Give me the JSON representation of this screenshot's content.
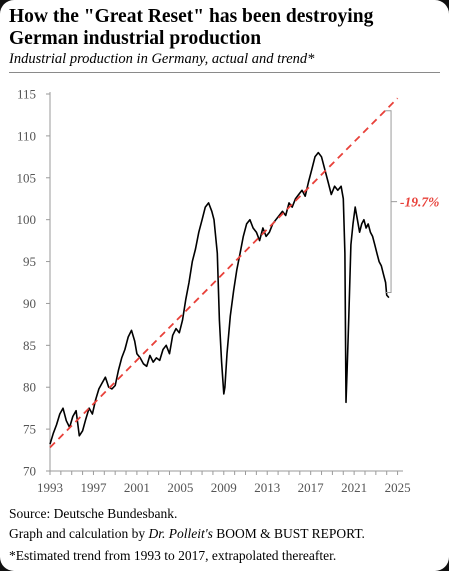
{
  "header": {
    "title_line1": "How the \"Great Reset\" has been destroying",
    "title_line2": "German industrial production",
    "subtitle": "Industrial production in Germany, actual and trend*"
  },
  "footer": {
    "source": "Source: Deutsche Bundesbank.",
    "credit_prefix": "Graph and calculation by ",
    "credit_author": "Dr. Polleit's",
    "credit_suffix": " BOOM & BUST REPORT.",
    "note": "*Estimated trend from 1993 to 2017, extrapolated thereafter."
  },
  "colors": {
    "actual": "#000000",
    "trend": "#e8413a",
    "bracket": "#9a9a9a",
    "annotation": "#e8413a",
    "axis": "#9a9a9a",
    "tick_text": "#555555"
  },
  "chart_data": {
    "type": "line",
    "title": "How the \"Great Reset\" has been destroying German industrial production",
    "subtitle": "Industrial production in Germany, actual and trend*",
    "xlabel": "",
    "ylabel": "",
    "xlim": [
      1993,
      2025.5
    ],
    "ylim": [
      70,
      115
    ],
    "x_ticks": [
      "1993",
      "1997",
      "2001",
      "2005",
      "2009",
      "2013",
      "2017",
      "2021",
      "2025"
    ],
    "y_ticks": [
      "70",
      "75",
      "80",
      "85",
      "90",
      "95",
      "100",
      "105",
      "110",
      "115"
    ],
    "grid": false,
    "legend": "none",
    "series": [
      {
        "style": "solid",
        "x": [
          1993.0,
          1993.3,
          1993.6,
          1993.9,
          1994.2,
          1994.5,
          1994.8,
          1995.1,
          1995.4,
          1995.7,
          1996.0,
          1996.3,
          1996.6,
          1996.9,
          1997.2,
          1997.5,
          1997.8,
          1998.1,
          1998.4,
          1998.7,
          1999.0,
          1999.3,
          1999.6,
          1999.9,
          2000.2,
          2000.5,
          2000.8,
          2001.0,
          2001.3,
          2001.6,
          2001.9,
          2002.2,
          2002.5,
          2002.8,
          2003.1,
          2003.4,
          2003.7,
          2004.0,
          2004.3,
          2004.6,
          2004.9,
          2005.2,
          2005.5,
          2005.8,
          2006.1,
          2006.4,
          2006.7,
          2007.0,
          2007.3,
          2007.6,
          2007.9,
          2008.1,
          2008.4,
          2008.6,
          2008.8,
          2009.0,
          2009.1,
          2009.3,
          2009.6,
          2009.9,
          2010.2,
          2010.5,
          2010.8,
          2011.1,
          2011.4,
          2011.7,
          2012.0,
          2012.3,
          2012.6,
          2012.9,
          2013.2,
          2013.5,
          2013.8,
          2014.1,
          2014.4,
          2014.7,
          2015.0,
          2015.3,
          2015.6,
          2015.9,
          2016.2,
          2016.5,
          2016.8,
          2017.1,
          2017.4,
          2017.7,
          2018.0,
          2018.3,
          2018.6,
          2018.9,
          2019.2,
          2019.5,
          2019.8,
          2020.0,
          2020.15,
          2020.25,
          2020.35,
          2020.5,
          2020.7,
          2020.9,
          2021.1,
          2021.3,
          2021.5,
          2021.7,
          2021.9,
          2022.1,
          2022.3,
          2022.5,
          2022.7,
          2022.9,
          2023.1,
          2023.3,
          2023.5,
          2023.7,
          2023.9,
          2024.0,
          2024.2
        ],
        "values": [
          73.2,
          74.5,
          75.5,
          76.8,
          77.5,
          76.0,
          75.2,
          76.5,
          77.2,
          74.2,
          74.8,
          76.2,
          77.5,
          76.8,
          78.5,
          79.8,
          80.5,
          81.2,
          80.0,
          79.8,
          80.2,
          82.0,
          83.5,
          84.5,
          86.0,
          86.8,
          85.5,
          84.0,
          83.5,
          82.8,
          82.5,
          83.8,
          83.0,
          83.5,
          83.2,
          84.5,
          85.0,
          84.0,
          86.2,
          87.0,
          86.5,
          88.0,
          90.5,
          92.5,
          95.0,
          96.5,
          98.5,
          100.0,
          101.5,
          102.0,
          101.0,
          100.0,
          96.0,
          88.0,
          83.0,
          79.2,
          80.0,
          84.0,
          88.5,
          91.5,
          94.0,
          96.0,
          98.0,
          99.5,
          100.0,
          99.0,
          98.5,
          97.5,
          99.0,
          98.0,
          98.5,
          99.5,
          100.0,
          100.5,
          101.0,
          100.5,
          102.0,
          101.5,
          102.5,
          103.0,
          103.5,
          102.8,
          104.5,
          106.0,
          107.5,
          108.0,
          107.5,
          106.0,
          104.5,
          103.0,
          104.0,
          103.5,
          104.0,
          102.5,
          96.0,
          78.2,
          82.0,
          88.0,
          97.0,
          99.5,
          101.5,
          100.0,
          98.5,
          99.5,
          100.0,
          99.0,
          99.5,
          98.5,
          98.0,
          97.0,
          96.0,
          95.0,
          94.5,
          93.5,
          92.5,
          91.0,
          90.7
        ]
      },
      {
        "style": "dashed",
        "x": [
          1993,
          2025
        ],
        "values": [
          72.8,
          114.5
        ]
      }
    ],
    "annotations": [
      {
        "text": "-19.7%",
        "x": 2024.4,
        "y_from": 91.3,
        "y_to": 113.0
      }
    ]
  }
}
